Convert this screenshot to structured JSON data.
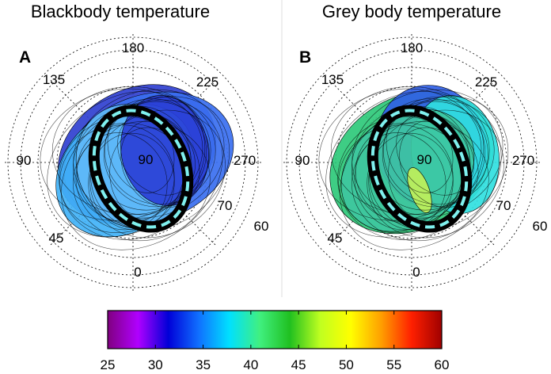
{
  "chart_data": {
    "type": "polar-contour",
    "panels": [
      {
        "title": "Blackbody temperature",
        "letter": "A",
        "angle_labels": [
          "180",
          "135",
          "225",
          "90",
          "270",
          "45",
          "0"
        ],
        "radial_labels": [
          "90",
          "70",
          "60"
        ],
        "region_colors": [
          "#3040d0",
          "#3a6ff0",
          "#41b2f7",
          "#60b8f8",
          "#2a3fd6"
        ],
        "ring_dash_color": "#7ff0ee"
      },
      {
        "title": "Grey body temperature",
        "letter": "B",
        "angle_labels": [
          "180",
          "135",
          "225",
          "90",
          "270",
          "45",
          "0"
        ],
        "radial_labels": [
          "90",
          "70",
          "60"
        ],
        "region_colors": [
          "#2ec97a",
          "#3ec7a0",
          "#3060e6",
          "#30e0e0",
          "#bff05a"
        ],
        "ring_dash_color": "#7ff0ee"
      }
    ],
    "colorbar": {
      "min": 25,
      "max": 60,
      "ticks": [
        "25",
        "30",
        "35",
        "40",
        "45",
        "50",
        "55",
        "60"
      ],
      "colormap": "jet",
      "gradient_stops": [
        "#800080",
        "#b000ff",
        "#0000d8",
        "#1070ff",
        "#00e0ff",
        "#40f080",
        "#20c020",
        "#c0ff20",
        "#ffff00",
        "#ffa000",
        "#ff2000",
        "#a00000"
      ]
    }
  }
}
